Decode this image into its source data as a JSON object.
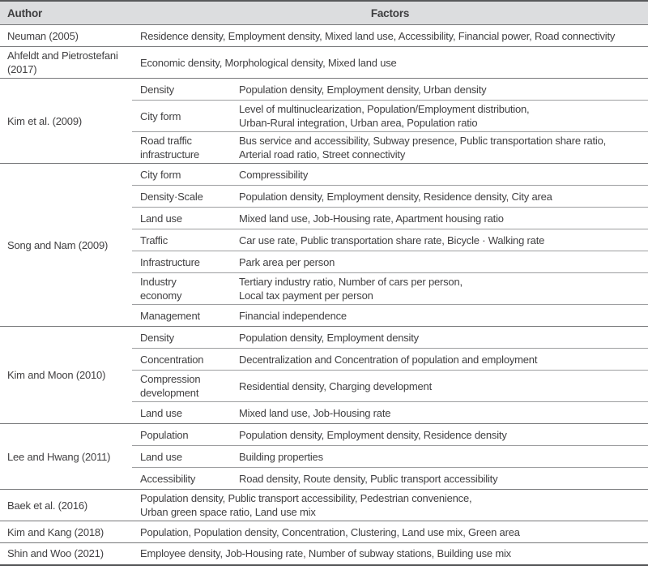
{
  "colors": {
    "header_bg": "#dcdddf",
    "outer_border": "#58595b",
    "group_separator": "#77787a",
    "inner_separator": "#9d9ea0",
    "text": "#414042"
  },
  "table": {
    "headers": {
      "author": "Author",
      "factors": "Factors"
    },
    "groups": [
      {
        "author": "Neuman (2005)",
        "rows": [
          {
            "category": "",
            "factors": "Residence density, Employment density, Mixed land use, Accessibility, Financial power, Road connectivity"
          }
        ]
      },
      {
        "author": "Ahfeldt and Pietrostefani (2017)",
        "rows": [
          {
            "category": "",
            "factors": "Economic density, Morphological density, Mixed land use"
          }
        ]
      },
      {
        "author": "Kim et al. (2009)",
        "rows": [
          {
            "category": "Density",
            "factors": "Population density, Employment density, Urban density"
          },
          {
            "category": "City form",
            "factors": "Level of multinuclearization, Population/Employment distribution,\nUrban-Rural integration, Urban area, Population ratio"
          },
          {
            "category": "Road traffic\ninfrastructure",
            "factors": "Bus service and accessibility, Subway presence, Public transportation share ratio,\nArterial road ratio, Street connectivity"
          }
        ]
      },
      {
        "author": "Song and Nam (2009)",
        "rows": [
          {
            "category": "City form",
            "factors": "Compressibility"
          },
          {
            "category": "Density·Scale",
            "factors": "Population density, Employment density, Residence density, City area"
          },
          {
            "category": "Land use",
            "factors": "Mixed land use, Job-Housing rate, Apartment housing ratio"
          },
          {
            "category": "Traffic",
            "factors": "Car use rate, Public transportation share rate, Bicycle · Walking rate"
          },
          {
            "category": "Infrastructure",
            "factors": "Park area per person"
          },
          {
            "category": "Industry\neconomy",
            "factors": "Tertiary industry ratio, Number of cars per person,\nLocal tax payment per person"
          },
          {
            "category": "Management",
            "factors": "Financial independence"
          }
        ]
      },
      {
        "author": "Kim and Moon (2010)",
        "rows": [
          {
            "category": "Density",
            "factors": "Population density, Employment density"
          },
          {
            "category": "Concentration",
            "factors": "Decentralization and Concentration of population and employment"
          },
          {
            "category": "Compression\ndevelopment",
            "factors": "Residential density, Charging development"
          },
          {
            "category": "Land use",
            "factors": "Mixed land use, Job-Housing rate"
          }
        ]
      },
      {
        "author": "Lee and Hwang (2011)",
        "rows": [
          {
            "category": "Population",
            "factors": "Population density, Employment density, Residence density"
          },
          {
            "category": "Land use",
            "factors": "Building properties"
          },
          {
            "category": "Accessibility",
            "factors": "Road density, Route density, Public transport accessibility"
          }
        ]
      },
      {
        "author": "Baek et al. (2016)",
        "rows": [
          {
            "category": "",
            "factors": "Population density, Public transport accessibility, Pedestrian convenience,\nUrban green space ratio, Land use mix"
          }
        ]
      },
      {
        "author": "Kim and Kang (2018)",
        "rows": [
          {
            "category": "",
            "factors": "Population, Population density, Concentration, Clustering, Land use mix, Green area"
          }
        ]
      },
      {
        "author": "Shin and Woo (2021)",
        "rows": [
          {
            "category": "",
            "factors": "Employee density, Job-Housing rate, Number of subway stations, Building use mix"
          }
        ]
      }
    ]
  }
}
